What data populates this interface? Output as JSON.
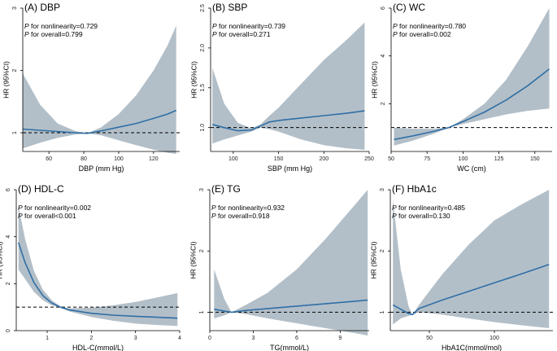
{
  "colors": {
    "band": "#b3bfc8",
    "line": "#2f6fa6",
    "axis": "#000000",
    "reference": "#000000"
  },
  "chart_data": [
    {
      "type": "line",
      "panel_label": "(A)",
      "title": "DBP",
      "xlabel": "DBP (mm Hg)",
      "ylabel": "HR (95%CI)",
      "xlim": [
        45,
        135
      ],
      "ylim": [
        0.7,
        3
      ],
      "xticks": [
        60,
        80,
        100,
        120
      ],
      "yticks": [
        1,
        2,
        3
      ],
      "reference_y": 1,
      "annotations": [
        {
          "p": "P",
          "rest": " for nonlinearity=0.729"
        },
        {
          "p": "P",
          "rest": " for overall=0.799"
        }
      ],
      "x": [
        45,
        55,
        65,
        75,
        82,
        90,
        100,
        110,
        120,
        128,
        133
      ],
      "y": [
        1.06,
        1.04,
        1.02,
        1.0,
        0.99,
        1.03,
        1.09,
        1.15,
        1.23,
        1.3,
        1.36
      ],
      "lower": [
        0.75,
        0.84,
        0.92,
        0.97,
        0.99,
        0.96,
        0.88,
        0.8,
        0.73,
        0.68,
        0.66
      ],
      "upper": [
        1.95,
        1.45,
        1.15,
        1.03,
        0.99,
        1.09,
        1.3,
        1.6,
        2.0,
        2.4,
        2.72
      ]
    },
    {
      "type": "line",
      "panel_label": "(B)",
      "title": "SBP",
      "xlabel": "SBP (mm Hg)",
      "ylabel": "HR (95%CI)",
      "xlim": [
        75,
        250
      ],
      "ylim": [
        0.7,
        2.5
      ],
      "xticks": [
        100,
        150,
        200,
        250
      ],
      "yticks": [
        1.0,
        1.5,
        2.0,
        2.5
      ],
      "reference_y": 1,
      "annotations": [
        {
          "p": "P",
          "rest": " for nonlinearity=0.739"
        },
        {
          "p": "P",
          "rest": " for overall=0.271"
        }
      ],
      "x": [
        77,
        90,
        105,
        120,
        130,
        140,
        150,
        175,
        200,
        225,
        245
      ],
      "y": [
        1.04,
        1.0,
        0.96,
        0.97,
        1.02,
        1.07,
        1.09,
        1.12,
        1.15,
        1.18,
        1.21
      ],
      "lower": [
        0.8,
        0.85,
        0.9,
        0.95,
        1.0,
        0.98,
        0.95,
        0.85,
        0.78,
        0.74,
        0.72
      ],
      "upper": [
        1.75,
        1.3,
        1.06,
        0.99,
        1.04,
        1.15,
        1.25,
        1.55,
        1.85,
        2.1,
        2.32
      ]
    },
    {
      "type": "line",
      "panel_label": "(C)",
      "title": "WC",
      "xlabel": "WC (cm)",
      "ylabel": "HR (95%CI)",
      "xlim": [
        50,
        162
      ],
      "ylim": [
        0,
        6
      ],
      "xticks": [
        50,
        75,
        100,
        125,
        150
      ],
      "yticks": [
        2,
        4,
        6
      ],
      "reference_y": 1,
      "annotations": [
        {
          "p": "P",
          "rest": " for nonlinearity=0.780"
        },
        {
          "p": "P",
          "rest": " for overall=0.002"
        }
      ],
      "x": [
        52,
        65,
        80,
        90,
        100,
        115,
        130,
        145,
        160
      ],
      "y": [
        0.5,
        0.65,
        0.85,
        1.0,
        1.25,
        1.65,
        2.15,
        2.75,
        3.45
      ],
      "lower": [
        0.25,
        0.45,
        0.75,
        1.0,
        1.15,
        1.35,
        1.55,
        1.7,
        1.8
      ],
      "upper": [
        1.0,
        0.95,
        0.95,
        1.0,
        1.35,
        2.0,
        3.0,
        4.4,
        6.0
      ]
    },
    {
      "type": "line",
      "panel_label": "(D)",
      "title": "HDL-C",
      "xlabel": "HDL-C(mmol/L)",
      "ylabel": "HR (95%CI)",
      "xlim": [
        0.3,
        4
      ],
      "ylim": [
        0,
        6
      ],
      "xticks": [
        1,
        2,
        3,
        4
      ],
      "yticks": [
        0,
        2,
        4,
        6
      ],
      "reference_y": 1,
      "annotations": [
        {
          "p": "P",
          "rest": " for nonlinearity=0.002"
        },
        {
          "p": "P",
          "rest": " for overall<0.001"
        }
      ],
      "x": [
        0.35,
        0.5,
        0.7,
        0.9,
        1.1,
        1.3,
        1.5,
        2.0,
        2.5,
        3.0,
        3.5,
        3.95
      ],
      "y": [
        3.75,
        2.9,
        2.05,
        1.5,
        1.18,
        1.0,
        0.88,
        0.74,
        0.66,
        0.61,
        0.57,
        0.53
      ],
      "lower": [
        2.6,
        2.2,
        1.65,
        1.3,
        1.08,
        0.98,
        0.82,
        0.58,
        0.42,
        0.3,
        0.24,
        0.2
      ],
      "upper": [
        5.3,
        3.9,
        2.55,
        1.75,
        1.3,
        1.03,
        0.95,
        0.98,
        1.08,
        1.22,
        1.42,
        1.6
      ]
    },
    {
      "type": "line",
      "panel_label": "(E)",
      "title": "TG",
      "xlabel": "TG(mmol/L)",
      "ylabel": "HR (95%CI)",
      "xlim": [
        0,
        11
      ],
      "ylim": [
        0.7,
        3
      ],
      "xticks": [
        0,
        3,
        6,
        9
      ],
      "yticks": [
        1,
        2,
        3
      ],
      "reference_y": 1,
      "annotations": [
        {
          "p": "P",
          "rest": " for nonlinearity=0.932"
        },
        {
          "p": "P",
          "rest": " for overall=0.918"
        }
      ],
      "x": [
        0.3,
        1,
        1.5,
        2.5,
        4,
        6,
        8,
        10,
        10.9
      ],
      "y": [
        1.05,
        1.02,
        1.0,
        1.03,
        1.06,
        1.1,
        1.14,
        1.18,
        1.2
      ],
      "lower": [
        0.9,
        0.95,
        1.0,
        0.97,
        0.9,
        0.82,
        0.74,
        0.66,
        0.62
      ],
      "upper": [
        1.7,
        1.22,
        1.0,
        1.12,
        1.32,
        1.7,
        2.2,
        2.75,
        3.0
      ]
    },
    {
      "type": "line",
      "panel_label": "(F)",
      "title": "HbA1c",
      "xlabel": "HbA1C(mmol/mol)",
      "ylabel": "HR (95%CI)",
      "xlim": [
        20,
        145
      ],
      "ylim": [
        0.7,
        3
      ],
      "xticks": [
        50,
        100
      ],
      "yticks": [
        1,
        2,
        3
      ],
      "reference_y": 1,
      "annotations": [
        {
          "p": "P",
          "rest": " for nonlinearity=0.485"
        },
        {
          "p": "P",
          "rest": " for overall=0.130"
        }
      ],
      "x": [
        22,
        28,
        34,
        37,
        42,
        60,
        80,
        100,
        120,
        142
      ],
      "y": [
        1.12,
        1.05,
        0.98,
        0.96,
        1.06,
        1.2,
        1.34,
        1.48,
        1.62,
        1.78
      ],
      "lower": [
        0.8,
        0.9,
        0.94,
        0.96,
        1.0,
        0.96,
        0.9,
        0.84,
        0.79,
        0.74
      ],
      "upper": [
        2.85,
        1.7,
        1.1,
        0.96,
        1.12,
        1.62,
        2.1,
        2.5,
        2.75,
        3.0
      ]
    }
  ]
}
